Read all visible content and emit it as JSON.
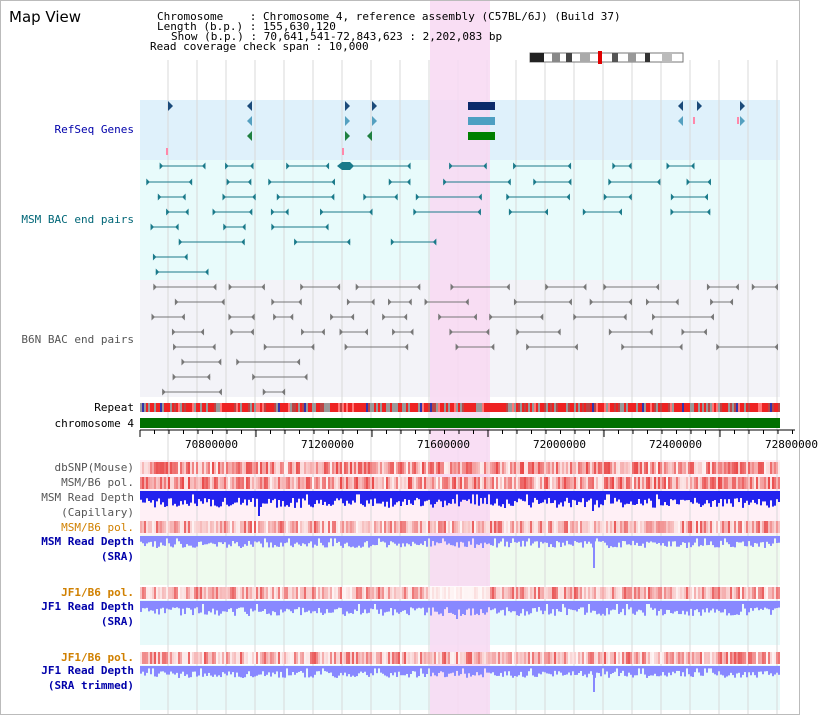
{
  "page": {
    "title": "Map View"
  },
  "info": {
    "chromosome_label": "Chromosome",
    "chromosome_value": "Chromosome 4, reference assembly (C57BL/6J) (Build 37)",
    "length_label": "Length (b.p.)",
    "length_value": "155,630,120",
    "show_label": "Show (b.p.)",
    "show_value": "70,641,541-72,843,623 : 2,202,083 bp",
    "coverage_label": "Read coverage check span",
    "coverage_value": "10,000"
  },
  "tracks": {
    "refseq": "RefSeq Genes",
    "msm_bac": "MSM BAC end pairs",
    "b6n_bac": "B6N BAC end pairs",
    "repeat": "Repeat",
    "chrom": "chromosome 4",
    "dbsnp": "dbSNP(Mouse)",
    "msm_pol": "MSM/B6 pol.",
    "msm_depth_cap_1": "MSM Read Depth",
    "msm_depth_cap_2": "(Capillary)",
    "msm_pol2": "MSM/B6 pol.",
    "msm_sra_1": "MSM Read Depth",
    "msm_sra_2": "(SRA)",
    "jf1_pol": "JF1/B6 pol.",
    "jf1_sra_1": "JF1 Read Depth",
    "jf1_sra_2": "(SRA)",
    "jf1_pol2": "JF1/B6 pol.",
    "jf1_trim_1": "JF1 Read Depth",
    "jf1_trim_2": "(SRA trimmed)"
  },
  "axis": {
    "ticks": [
      "70800000",
      "71200000",
      "71600000",
      "72000000",
      "72400000",
      "72800000"
    ]
  },
  "colors": {
    "refseq_bg": "#dff1fb",
    "msm_bac_bg": "#e8fbfb",
    "b6n_bg": "#f3f3f8",
    "highlight": "#f8d8f2",
    "chrom_green": "#007000",
    "depth_blue": "#2222ee",
    "light_blue": "#8888ff",
    "pol_red": "#ee3333"
  }
}
